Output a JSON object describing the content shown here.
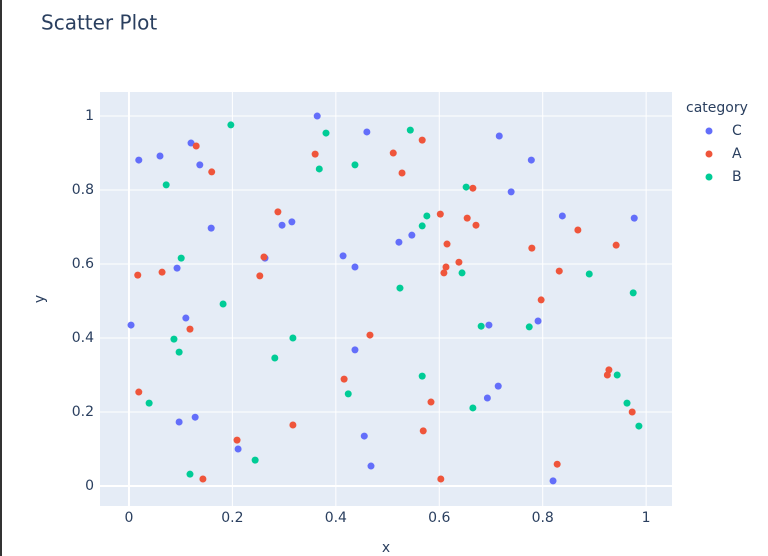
{
  "chart_data": {
    "type": "scatter",
    "title": "Scatter Plot",
    "x_label": "x",
    "y_label": "y",
    "legend_title": "category",
    "xlim": [
      -0.056,
      1.05
    ],
    "ylim": [
      -0.054,
      1.065
    ],
    "xticks": [
      0,
      0.2,
      0.4,
      0.6,
      0.8,
      1
    ],
    "yticks": [
      0,
      0.2,
      0.4,
      0.6,
      0.8,
      1
    ],
    "grid": true,
    "legend": "right",
    "series": [
      {
        "name": "C",
        "color": "#636efa",
        "x": [
          0.004,
          0.019,
          0.06,
          0.12,
          0.137,
          0.093,
          0.159,
          0.11,
          0.128,
          0.097,
          0.211,
          0.263,
          0.296,
          0.315,
          0.364,
          0.46,
          0.414,
          0.437,
          0.437,
          0.455,
          0.468,
          0.522,
          0.547,
          0.716,
          0.739,
          0.778,
          0.838,
          0.977,
          0.791,
          0.696,
          0.693,
          0.714,
          0.82
        ],
        "values": [
          0.435,
          0.881,
          0.892,
          0.927,
          0.868,
          0.589,
          0.697,
          0.454,
          0.186,
          0.173,
          0.1,
          0.616,
          0.705,
          0.714,
          1.0,
          0.957,
          0.622,
          0.592,
          0.368,
          0.135,
          0.054,
          0.659,
          0.678,
          0.946,
          0.795,
          0.881,
          0.73,
          0.724,
          0.446,
          0.435,
          0.238,
          0.27,
          0.014
        ]
      },
      {
        "name": "A",
        "color": "#EF553B",
        "x": [
          0.019,
          0.017,
          0.064,
          0.13,
          0.16,
          0.118,
          0.143,
          0.209,
          0.288,
          0.261,
          0.253,
          0.317,
          0.36,
          0.416,
          0.466,
          0.511,
          0.528,
          0.567,
          0.602,
          0.615,
          0.613,
          0.609,
          0.638,
          0.654,
          0.665,
          0.671,
          0.584,
          0.569,
          0.603,
          0.779,
          0.797,
          0.832,
          0.868,
          0.942,
          0.928,
          0.925,
          0.973,
          0.828
        ],
        "values": [
          0.254,
          0.57,
          0.578,
          0.919,
          0.849,
          0.424,
          0.019,
          0.124,
          0.741,
          0.619,
          0.568,
          0.165,
          0.897,
          0.289,
          0.408,
          0.9,
          0.846,
          0.935,
          0.735,
          0.654,
          0.592,
          0.576,
          0.605,
          0.724,
          0.805,
          0.705,
          0.227,
          0.149,
          0.019,
          0.643,
          0.503,
          0.581,
          0.692,
          0.651,
          0.314,
          0.3,
          0.2,
          0.059
        ]
      },
      {
        "name": "B",
        "color": "#00cc96",
        "x": [
          0.072,
          0.101,
          0.087,
          0.097,
          0.039,
          0.118,
          0.182,
          0.197,
          0.244,
          0.282,
          0.317,
          0.368,
          0.381,
          0.437,
          0.424,
          0.524,
          0.544,
          0.567,
          0.576,
          0.567,
          0.644,
          0.652,
          0.665,
          0.681,
          0.774,
          0.89,
          0.944,
          0.963,
          0.975,
          0.986
        ],
        "values": [
          0.814,
          0.616,
          0.397,
          0.362,
          0.224,
          0.032,
          0.492,
          0.976,
          0.07,
          0.346,
          0.4,
          0.857,
          0.954,
          0.868,
          0.249,
          0.535,
          0.962,
          0.703,
          0.73,
          0.297,
          0.576,
          0.808,
          0.211,
          0.432,
          0.43,
          0.573,
          0.3,
          0.224,
          0.522,
          0.162
        ]
      }
    ]
  }
}
